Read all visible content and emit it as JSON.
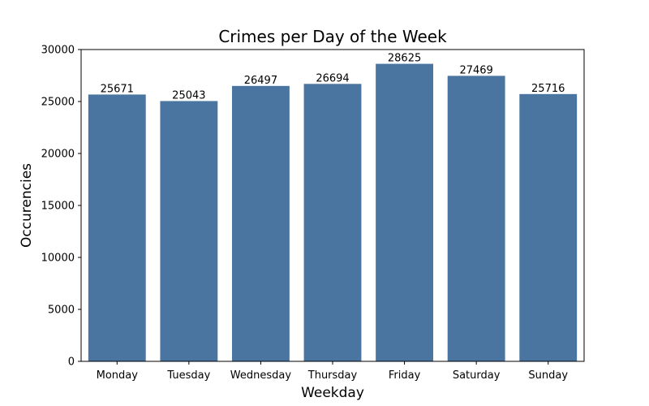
{
  "chart_data": {
    "type": "bar",
    "title": "Crimes per Day of the Week",
    "xlabel": "Weekday",
    "ylabel": "Occurencies",
    "categories": [
      "Monday",
      "Tuesday",
      "Wednesday",
      "Thursday",
      "Friday",
      "Saturday",
      "Sunday"
    ],
    "values": [
      25671,
      25043,
      26497,
      26694,
      28625,
      27469,
      25716
    ],
    "value_labels": [
      "25671",
      "25043",
      "26497",
      "26694",
      "28625",
      "27469",
      "25716"
    ],
    "ylim": [
      0,
      30000
    ],
    "yticks": [
      0,
      5000,
      10000,
      15000,
      20000,
      25000,
      30000
    ],
    "ytick_labels": [
      "0",
      "5000",
      "10000",
      "15000",
      "20000",
      "25000",
      "30000"
    ],
    "bar_color": "#4A75A0",
    "grid": false,
    "legend": "none"
  }
}
